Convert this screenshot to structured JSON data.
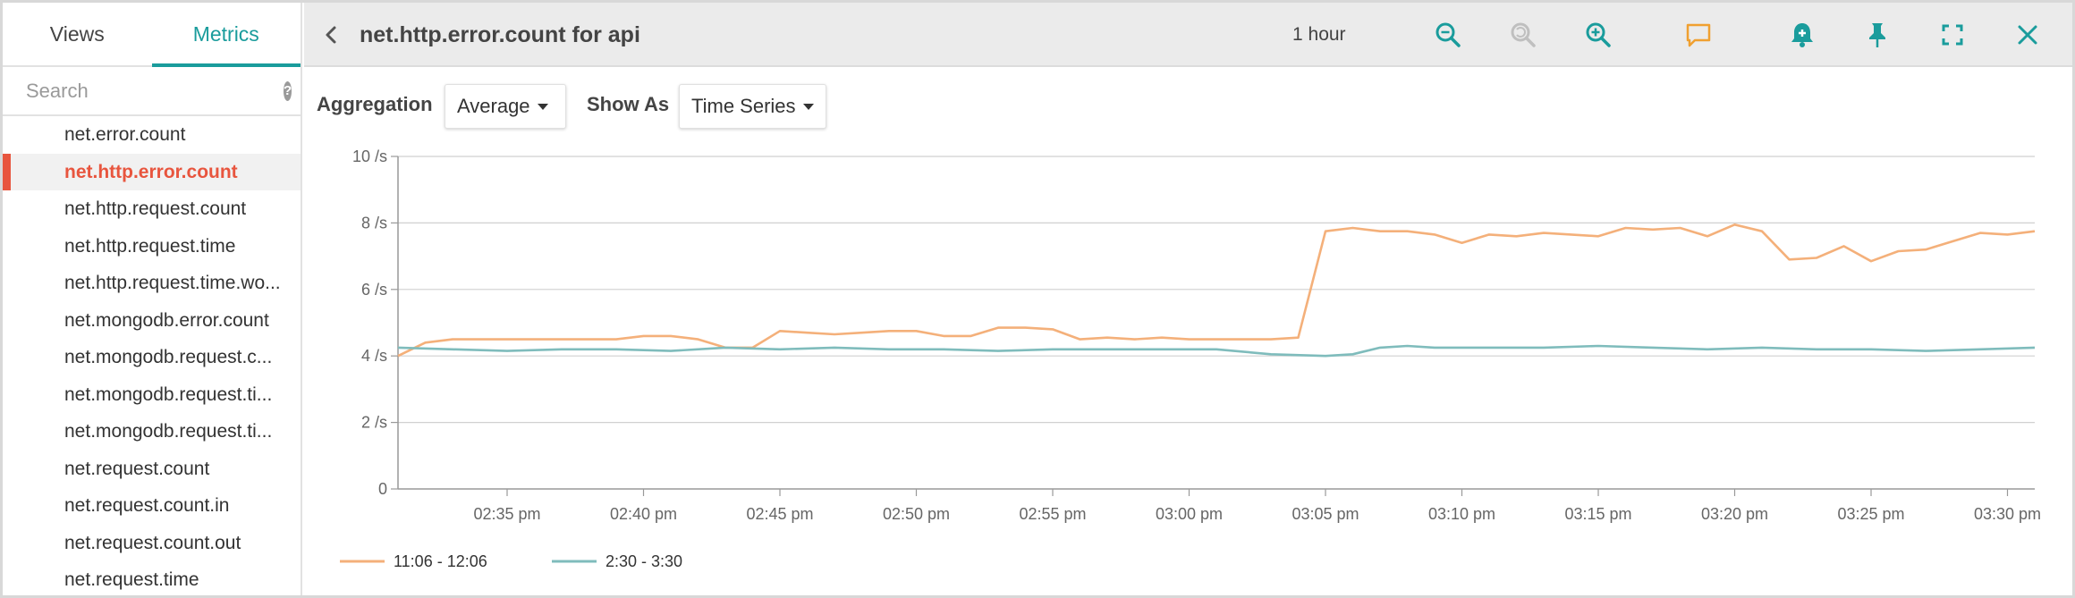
{
  "sidebar": {
    "tabs": [
      {
        "label": "Views"
      },
      {
        "label": "Metrics"
      }
    ],
    "search": {
      "placeholder": "Search",
      "help": "?"
    },
    "metrics": [
      "net.error.count",
      "net.http.error.count",
      "net.http.request.count",
      "net.http.request.time",
      "net.http.request.time.wo...",
      "net.mongodb.error.count",
      "net.mongodb.request.c...",
      "net.mongodb.request.ti...",
      "net.mongodb.request.ti...",
      "net.request.count",
      "net.request.count.in",
      "net.request.count.out",
      "net.request.time"
    ],
    "selected_index": 1
  },
  "header": {
    "title": "net.http.error.count for api",
    "time_range": "1 hour",
    "icons": [
      "back-chevron-icon",
      "zoom-out-icon",
      "zoom-reset-icon",
      "zoom-in-icon",
      "comment-icon",
      "add-alert-icon",
      "pin-icon",
      "fullscreen-icon",
      "close-icon"
    ]
  },
  "controls": {
    "aggregation_label": "Aggregation",
    "aggregation_value": "Average",
    "show_as_label": "Show As",
    "show_as_value": "Time Series"
  },
  "colors": {
    "accent": "#1a9c9c",
    "selected": "#e8553e",
    "series_orange": "#f4b07a",
    "series_teal": "#7fbcbc",
    "comment_icon": "#f0a030"
  },
  "chart_data": {
    "type": "line",
    "ylim": [
      0,
      10
    ],
    "y_ticks": [
      "0",
      "2 /s",
      "4 /s",
      "6 /s",
      "8 /s",
      "10 /s"
    ],
    "x_range": [
      "02:31",
      "03:31"
    ],
    "x_ticks": [
      "02:35 pm",
      "02:40 pm",
      "02:45 pm",
      "02:50 pm",
      "02:55 pm",
      "03:00 pm",
      "03:05 pm",
      "03:10 pm",
      "03:15 pm",
      "03:20 pm",
      "03:25 pm",
      "03:30 pm"
    ],
    "grid": true,
    "legend_position": "bottom-left",
    "series": [
      {
        "name": "11:06 - 12:06",
        "color": "#f4b07a",
        "x": [
          "02:31",
          "02:32",
          "02:33",
          "02:34",
          "02:35",
          "02:36",
          "02:37",
          "02:38",
          "02:39",
          "02:40",
          "02:41",
          "02:42",
          "02:43",
          "02:44",
          "02:45",
          "02:46",
          "02:47",
          "02:48",
          "02:49",
          "02:50",
          "02:51",
          "02:52",
          "02:53",
          "02:54",
          "02:55",
          "02:56",
          "02:57",
          "02:58",
          "02:59",
          "03:00",
          "03:01",
          "03:02",
          "03:03",
          "03:04",
          "03:05",
          "03:06",
          "03:07",
          "03:08",
          "03:09",
          "03:10",
          "03:11",
          "03:12",
          "03:13",
          "03:14",
          "03:15",
          "03:16",
          "03:17",
          "03:18",
          "03:19",
          "03:20",
          "03:21",
          "03:22",
          "03:23",
          "03:24",
          "03:25",
          "03:26",
          "03:27",
          "03:28",
          "03:29",
          "03:30",
          "03:31"
        ],
        "values": [
          4.0,
          4.4,
          4.5,
          4.5,
          4.5,
          4.5,
          4.5,
          4.5,
          4.5,
          4.6,
          4.6,
          4.5,
          4.25,
          4.25,
          4.75,
          4.7,
          4.65,
          4.7,
          4.75,
          4.75,
          4.6,
          4.6,
          4.85,
          4.85,
          4.8,
          4.5,
          4.55,
          4.5,
          4.55,
          4.5,
          4.5,
          4.5,
          4.5,
          4.55,
          7.75,
          7.85,
          7.75,
          7.75,
          7.65,
          7.4,
          7.65,
          7.6,
          7.7,
          7.65,
          7.6,
          7.85,
          7.8,
          7.85,
          7.6,
          7.95,
          7.75,
          6.9,
          6.95,
          7.3,
          6.85,
          7.15,
          7.2,
          7.45,
          7.7,
          7.65,
          7.75
        ]
      },
      {
        "name": "2:30 - 3:30",
        "color": "#7fbcbc",
        "x": [
          "02:31",
          "02:33",
          "02:35",
          "02:37",
          "02:39",
          "02:41",
          "02:43",
          "02:45",
          "02:47",
          "02:49",
          "02:51",
          "02:53",
          "02:55",
          "02:57",
          "02:59",
          "03:01",
          "03:03",
          "03:05",
          "03:06",
          "03:07",
          "03:08",
          "03:09",
          "03:11",
          "03:13",
          "03:15",
          "03:17",
          "03:19",
          "03:21",
          "03:23",
          "03:25",
          "03:27",
          "03:29",
          "03:31"
        ],
        "values": [
          4.25,
          4.2,
          4.15,
          4.2,
          4.2,
          4.15,
          4.25,
          4.2,
          4.25,
          4.2,
          4.2,
          4.15,
          4.2,
          4.2,
          4.2,
          4.2,
          4.05,
          4.0,
          4.05,
          4.25,
          4.3,
          4.25,
          4.25,
          4.25,
          4.3,
          4.25,
          4.2,
          4.25,
          4.2,
          4.2,
          4.15,
          4.2,
          4.25
        ]
      }
    ]
  }
}
